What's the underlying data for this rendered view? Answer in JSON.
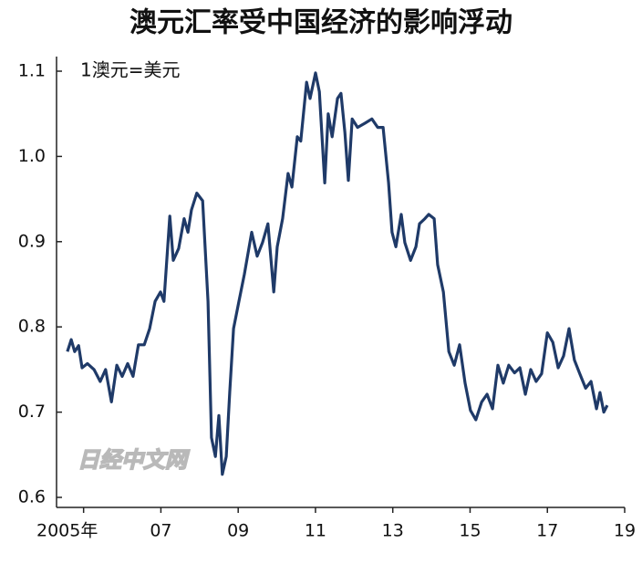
{
  "chart_data": {
    "type": "line",
    "title": "澳元汇率受中国经济的影响浮动",
    "subtitle": "1澳元=美元",
    "watermark": "日经中文网",
    "x": [
      2004.58,
      2004.68,
      2004.77,
      2004.87,
      2004.96,
      2005.1,
      2005.27,
      2005.43,
      2005.57,
      2005.72,
      2005.86,
      2006.0,
      2006.14,
      2006.28,
      2006.42,
      2006.57,
      2006.71,
      2006.85,
      2006.99,
      2007.08,
      2007.23,
      2007.32,
      2007.46,
      2007.6,
      2007.7,
      2007.79,
      2007.93,
      2008.08,
      2008.22,
      2008.31,
      2008.41,
      2008.5,
      2008.59,
      2008.69,
      2008.78,
      2008.88,
      2009.02,
      2009.16,
      2009.35,
      2009.49,
      2009.63,
      2009.77,
      2009.92,
      2010.01,
      2010.15,
      2010.29,
      2010.39,
      2010.53,
      2010.62,
      2010.77,
      2010.86,
      2011.0,
      2011.1,
      2011.24,
      2011.33,
      2011.43,
      2011.57,
      2011.66,
      2011.76,
      2011.85,
      2011.95,
      2012.09,
      2012.28,
      2012.46,
      2012.61,
      2012.75,
      2012.89,
      2012.98,
      2013.08,
      2013.22,
      2013.31,
      2013.46,
      2013.6,
      2013.69,
      2013.83,
      2013.93,
      2014.07,
      2014.16,
      2014.31,
      2014.45,
      2014.59,
      2014.73,
      2014.87,
      2015.01,
      2015.15,
      2015.3,
      2015.44,
      2015.58,
      2015.72,
      2015.86,
      2016.0,
      2016.15,
      2016.29,
      2016.43,
      2016.57,
      2016.71,
      2016.85,
      2017.0,
      2017.14,
      2017.28,
      2017.42,
      2017.56,
      2017.7,
      2017.84,
      2017.99,
      2018.13,
      2018.27,
      2018.36,
      2018.46,
      2018.55
    ],
    "series": [
      {
        "color": "#1f3a68",
        "values": [
          0.771,
          0.785,
          0.771,
          0.778,
          0.752,
          0.757,
          0.75,
          0.736,
          0.75,
          0.712,
          0.755,
          0.742,
          0.757,
          0.742,
          0.779,
          0.779,
          0.798,
          0.83,
          0.841,
          0.83,
          0.93,
          0.878,
          0.892,
          0.927,
          0.911,
          0.937,
          0.957,
          0.948,
          0.83,
          0.67,
          0.648,
          0.696,
          0.627,
          0.648,
          0.723,
          0.798,
          0.83,
          0.862,
          0.911,
          0.883,
          0.899,
          0.921,
          0.841,
          0.894,
          0.927,
          0.98,
          0.964,
          1.023,
          1.018,
          1.087,
          1.068,
          1.098,
          1.076,
          0.969,
          1.05,
          1.023,
          1.068,
          1.074,
          1.028,
          0.972,
          1.044,
          1.034,
          1.039,
          1.044,
          1.034,
          1.034,
          0.969,
          0.911,
          0.894,
          0.932,
          0.899,
          0.878,
          0.894,
          0.921,
          0.927,
          0.932,
          0.927,
          0.873,
          0.841,
          0.771,
          0.755,
          0.779,
          0.734,
          0.702,
          0.691,
          0.712,
          0.721,
          0.704,
          0.755,
          0.734,
          0.755,
          0.746,
          0.752,
          0.721,
          0.75,
          0.736,
          0.745,
          0.793,
          0.782,
          0.752,
          0.766,
          0.798,
          0.761,
          0.745,
          0.728,
          0.736,
          0.704,
          0.723,
          0.7,
          0.708
        ]
      }
    ],
    "xlim": [
      2004.3,
      2019.0
    ],
    "xticks": [
      {
        "value": 2005,
        "label": "2005年"
      },
      {
        "value": 2007,
        "label": "07"
      },
      {
        "value": 2009,
        "label": "09"
      },
      {
        "value": 2011,
        "label": "11"
      },
      {
        "value": 2013,
        "label": "13"
      },
      {
        "value": 2015,
        "label": "15"
      },
      {
        "value": 2017,
        "label": "17"
      },
      {
        "value": 2019,
        "label": "19"
      }
    ],
    "ylim": [
      0.6,
      1.1
    ],
    "yticks": [
      0.6,
      0.7,
      0.8,
      0.9,
      {
        "value": 1.0,
        "label": "1.0"
      },
      1.1
    ],
    "grid": false
  }
}
